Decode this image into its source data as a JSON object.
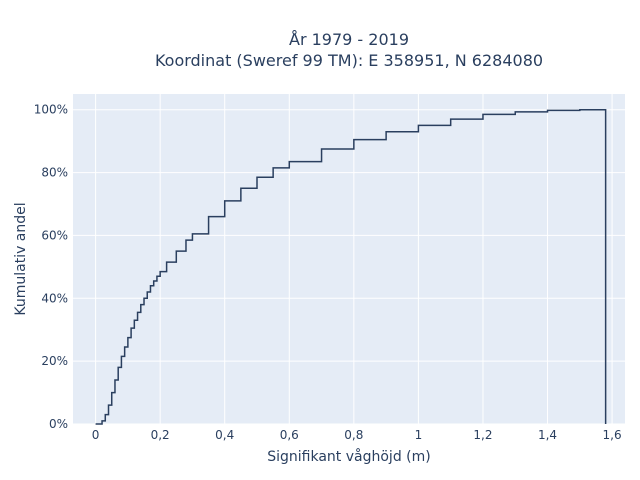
{
  "chart_data": {
    "type": "line",
    "line_shape": "step",
    "title_line1": "År 1979 - 2019",
    "title_line2": "Koordinat (Sweref 99 TM): E 358951, N 6284080",
    "xlabel": "Signifikant våghöjd (m)",
    "ylabel": "Kumulativ andel",
    "xlim": [
      -0.07,
      1.64
    ],
    "ylim": [
      0,
      1.05
    ],
    "x_ticks": [
      0,
      0.2,
      0.4,
      0.6,
      0.8,
      1,
      1.2,
      1.4,
      1.6
    ],
    "x_tick_labels": [
      "0",
      "0,2",
      "0,4",
      "0,6",
      "0,8",
      "1",
      "1,2",
      "1,4",
      "1,6"
    ],
    "y_ticks": [
      0,
      0.2,
      0.4,
      0.6,
      0.8,
      1
    ],
    "y_tick_labels": [
      "0%",
      "20%",
      "40%",
      "60%",
      "80%",
      "100%"
    ],
    "grid": true,
    "background_color": "#e5ecf6",
    "line_color": "#2a3f5f",
    "series": [
      {
        "x": [
          0.0,
          0.01,
          0.02,
          0.03,
          0.04,
          0.05,
          0.06,
          0.07,
          0.08,
          0.09,
          0.1,
          0.11,
          0.12,
          0.13,
          0.14,
          0.15,
          0.16,
          0.17,
          0.18,
          0.19,
          0.2,
          0.22,
          0.25,
          0.28,
          0.3,
          0.35,
          0.4,
          0.45,
          0.5,
          0.55,
          0.6,
          0.7,
          0.8,
          0.9,
          1.0,
          1.1,
          1.2,
          1.3,
          1.4,
          1.5,
          1.58
        ],
        "y": [
          0.0,
          0.0,
          0.01,
          0.03,
          0.06,
          0.1,
          0.14,
          0.18,
          0.215,
          0.245,
          0.275,
          0.305,
          0.33,
          0.355,
          0.38,
          0.4,
          0.42,
          0.44,
          0.455,
          0.47,
          0.485,
          0.515,
          0.55,
          0.585,
          0.605,
          0.66,
          0.71,
          0.75,
          0.785,
          0.815,
          0.835,
          0.875,
          0.905,
          0.93,
          0.95,
          0.97,
          0.985,
          0.993,
          0.998,
          1.0,
          1.0
        ]
      }
    ]
  }
}
